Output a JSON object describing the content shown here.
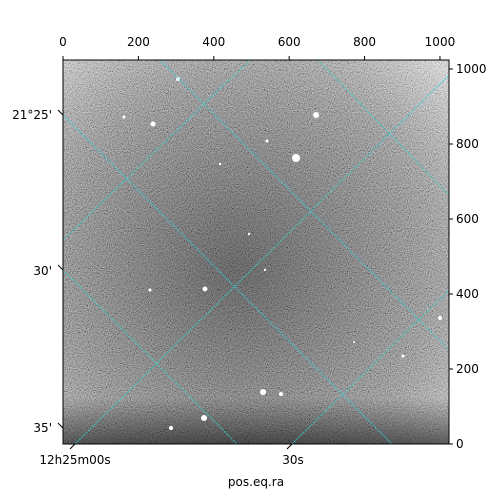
{
  "chart_data": {
    "type": "image",
    "xlabel": "pos.eq.ra",
    "xlim": [
      0,
      1024
    ],
    "xticks": [
      0,
      200,
      400,
      600,
      800,
      1000
    ],
    "ylim": [
      0,
      1024
    ],
    "yticks": [
      0,
      200,
      400,
      600,
      800,
      1000
    ],
    "ra_labels": [
      "12h25m00s",
      "30s"
    ],
    "dec_labels": [
      "21°25'",
      "30'",
      "35'"
    ]
  }
}
